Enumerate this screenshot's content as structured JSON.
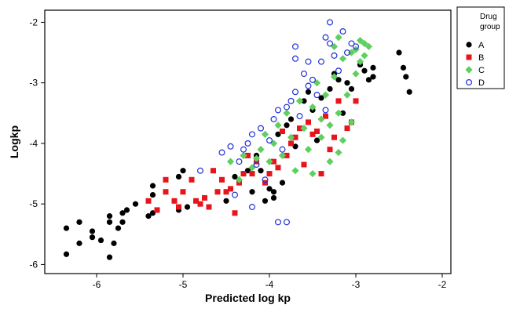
{
  "chart_data": {
    "type": "scatter",
    "xlabel": "Predicted log kp",
    "ylabel": "Logkp",
    "xlim": [
      -6.6,
      -1.9
    ],
    "ylim": [
      -6.15,
      -1.8
    ],
    "xticks": [
      -6,
      -5,
      -4,
      -3,
      -2
    ],
    "yticks": [
      -2,
      -3,
      -4,
      -5,
      -6
    ],
    "xtick_labels": [
      "-6",
      "-5",
      "-4",
      "-3",
      "-2"
    ],
    "ytick_labels": [
      "-2",
      "-3",
      "-4",
      "-5",
      "-6"
    ],
    "grid": false,
    "legend": {
      "placement": "right",
      "title_lines": [
        "Drug",
        "group"
      ]
    },
    "series": [
      {
        "name": "A",
        "color": "#000000",
        "marker": "filled-circle",
        "points": [
          [
            -6.35,
            -5.83
          ],
          [
            -6.35,
            -5.4
          ],
          [
            -6.2,
            -5.3
          ],
          [
            -6.2,
            -5.65
          ],
          [
            -6.05,
            -5.45
          ],
          [
            -6.05,
            -5.55
          ],
          [
            -5.95,
            -5.6
          ],
          [
            -5.85,
            -5.3
          ],
          [
            -5.85,
            -5.2
          ],
          [
            -5.85,
            -5.88
          ],
          [
            -5.8,
            -5.65
          ],
          [
            -5.75,
            -5.4
          ],
          [
            -5.7,
            -5.3
          ],
          [
            -5.7,
            -5.15
          ],
          [
            -5.65,
            -5.1
          ],
          [
            -5.55,
            -5.0
          ],
          [
            -5.4,
            -5.2
          ],
          [
            -5.35,
            -5.15
          ],
          [
            -5.35,
            -4.7
          ],
          [
            -5.35,
            -4.85
          ],
          [
            -5.05,
            -5.1
          ],
          [
            -5.05,
            -4.55
          ],
          [
            -5.0,
            -4.45
          ],
          [
            -4.95,
            -5.05
          ],
          [
            -4.5,
            -4.95
          ],
          [
            -4.4,
            -4.55
          ],
          [
            -4.25,
            -4.45
          ],
          [
            -4.2,
            -4.8
          ],
          [
            -4.15,
            -4.2
          ],
          [
            -4.1,
            -4.45
          ],
          [
            -4.05,
            -4.95
          ],
          [
            -4.0,
            -4.75
          ],
          [
            -3.95,
            -4.8
          ],
          [
            -3.95,
            -4.9
          ],
          [
            -3.9,
            -3.85
          ],
          [
            -3.85,
            -4.65
          ],
          [
            -3.8,
            -3.7
          ],
          [
            -3.75,
            -3.6
          ],
          [
            -3.7,
            -4.05
          ],
          [
            -3.6,
            -3.3
          ],
          [
            -3.55,
            -3.15
          ],
          [
            -3.5,
            -3.45
          ],
          [
            -3.45,
            -3.95
          ],
          [
            -3.4,
            -3.25
          ],
          [
            -3.3,
            -3.1
          ],
          [
            -3.25,
            -2.85
          ],
          [
            -3.2,
            -2.95
          ],
          [
            -3.15,
            -3.5
          ],
          [
            -3.1,
            -3.0
          ],
          [
            -3.05,
            -3.1
          ],
          [
            -2.95,
            -2.7
          ],
          [
            -2.9,
            -2.8
          ],
          [
            -2.85,
            -2.95
          ],
          [
            -2.8,
            -2.75
          ],
          [
            -2.8,
            -2.9
          ],
          [
            -2.5,
            -2.5
          ],
          [
            -2.45,
            -2.75
          ],
          [
            -2.42,
            -2.9
          ],
          [
            -2.38,
            -3.15
          ]
        ]
      },
      {
        "name": "B",
        "color": "#e8141c",
        "marker": "filled-square",
        "points": [
          [
            -5.4,
            -4.95
          ],
          [
            -5.3,
            -5.1
          ],
          [
            -5.2,
            -4.6
          ],
          [
            -5.2,
            -4.8
          ],
          [
            -5.1,
            -4.95
          ],
          [
            -5.05,
            -5.05
          ],
          [
            -5.0,
            -4.8
          ],
          [
            -4.9,
            -4.6
          ],
          [
            -4.85,
            -4.95
          ],
          [
            -4.8,
            -5.0
          ],
          [
            -4.75,
            -4.9
          ],
          [
            -4.7,
            -5.05
          ],
          [
            -4.65,
            -4.45
          ],
          [
            -4.6,
            -4.8
          ],
          [
            -4.55,
            -4.6
          ],
          [
            -4.5,
            -4.8
          ],
          [
            -4.45,
            -4.75
          ],
          [
            -4.4,
            -5.15
          ],
          [
            -4.35,
            -4.65
          ],
          [
            -4.3,
            -4.5
          ],
          [
            -4.25,
            -4.2
          ],
          [
            -4.2,
            -4.5
          ],
          [
            -4.15,
            -4.3
          ],
          [
            -4.05,
            -4.65
          ],
          [
            -4.0,
            -4.5
          ],
          [
            -3.95,
            -4.3
          ],
          [
            -3.9,
            -4.4
          ],
          [
            -3.85,
            -3.8
          ],
          [
            -3.8,
            -4.2
          ],
          [
            -3.75,
            -4.0
          ],
          [
            -3.7,
            -3.9
          ],
          [
            -3.65,
            -3.75
          ],
          [
            -3.6,
            -4.35
          ],
          [
            -3.55,
            -3.65
          ],
          [
            -3.5,
            -3.85
          ],
          [
            -3.45,
            -3.8
          ],
          [
            -3.4,
            -4.5
          ],
          [
            -3.35,
            -3.55
          ],
          [
            -3.3,
            -4.1
          ],
          [
            -3.25,
            -3.9
          ],
          [
            -3.2,
            -3.3
          ],
          [
            -3.1,
            -3.75
          ],
          [
            -3.05,
            -3.65
          ],
          [
            -3.0,
            -3.3
          ]
        ]
      },
      {
        "name": "C",
        "color": "#5fcf5f",
        "marker": "filled-diamond",
        "points": [
          [
            -4.45,
            -4.3
          ],
          [
            -4.35,
            -4.6
          ],
          [
            -4.3,
            -4.2
          ],
          [
            -4.2,
            -4.4
          ],
          [
            -4.15,
            -4.25
          ],
          [
            -4.1,
            -4.1
          ],
          [
            -4.05,
            -3.85
          ],
          [
            -4.0,
            -4.3
          ],
          [
            -3.95,
            -4.0
          ],
          [
            -3.9,
            -3.7
          ],
          [
            -3.85,
            -4.2
          ],
          [
            -3.8,
            -3.5
          ],
          [
            -3.75,
            -3.9
          ],
          [
            -3.7,
            -4.45
          ],
          [
            -3.65,
            -3.3
          ],
          [
            -3.6,
            -3.75
          ],
          [
            -3.55,
            -4.1
          ],
          [
            -3.5,
            -3.4
          ],
          [
            -3.5,
            -4.5
          ],
          [
            -3.45,
            -3.0
          ],
          [
            -3.4,
            -3.6
          ],
          [
            -3.4,
            -3.9
          ],
          [
            -3.35,
            -3.2
          ],
          [
            -3.3,
            -3.7
          ],
          [
            -3.3,
            -4.3
          ],
          [
            -3.25,
            -2.9
          ],
          [
            -3.2,
            -3.5
          ],
          [
            -3.2,
            -4.15
          ],
          [
            -3.15,
            -2.6
          ],
          [
            -3.15,
            -3.95
          ],
          [
            -3.1,
            -3.2
          ],
          [
            -3.05,
            -2.5
          ],
          [
            -3.05,
            -3.65
          ],
          [
            -3.0,
            -2.85
          ],
          [
            -2.95,
            -2.65
          ],
          [
            -2.9,
            -2.35
          ],
          [
            -2.85,
            -2.4
          ],
          [
            -3.2,
            -2.25
          ],
          [
            -3.25,
            -2.4
          ],
          [
            -3.0,
            -2.45
          ],
          [
            -2.95,
            -2.3
          ],
          [
            -2.9,
            -2.55
          ]
        ]
      },
      {
        "name": "D",
        "color": "#1f2fd6",
        "marker": "open-circle",
        "points": [
          [
            -4.8,
            -4.45
          ],
          [
            -4.55,
            -4.15
          ],
          [
            -4.45,
            -4.05
          ],
          [
            -4.4,
            -4.85
          ],
          [
            -4.35,
            -4.3
          ],
          [
            -4.3,
            -4.1
          ],
          [
            -4.25,
            -4.0
          ],
          [
            -4.2,
            -3.85
          ],
          [
            -4.15,
            -4.35
          ],
          [
            -4.1,
            -3.75
          ],
          [
            -4.05,
            -4.6
          ],
          [
            -4.0,
            -3.95
          ],
          [
            -3.95,
            -3.6
          ],
          [
            -3.9,
            -3.45
          ],
          [
            -3.85,
            -4.1
          ],
          [
            -3.8,
            -3.4
          ],
          [
            -3.75,
            -3.3
          ],
          [
            -3.7,
            -3.15
          ],
          [
            -3.65,
            -3.55
          ],
          [
            -3.6,
            -2.85
          ],
          [
            -3.55,
            -3.05
          ],
          [
            -3.5,
            -2.95
          ],
          [
            -3.45,
            -3.2
          ],
          [
            -3.4,
            -2.65
          ],
          [
            -3.35,
            -3.45
          ],
          [
            -3.3,
            -2.35
          ],
          [
            -3.25,
            -2.55
          ],
          [
            -3.2,
            -2.8
          ],
          [
            -3.15,
            -2.15
          ],
          [
            -3.1,
            -2.5
          ],
          [
            -3.05,
            -2.35
          ],
          [
            -3.0,
            -2.4
          ],
          [
            -3.3,
            -2.0
          ],
          [
            -3.35,
            -2.25
          ],
          [
            -3.55,
            -2.65
          ],
          [
            -3.7,
            -2.4
          ],
          [
            -3.8,
            -5.3
          ],
          [
            -3.9,
            -5.3
          ],
          [
            -4.2,
            -5.05
          ],
          [
            -3.7,
            -2.6
          ]
        ]
      }
    ]
  }
}
